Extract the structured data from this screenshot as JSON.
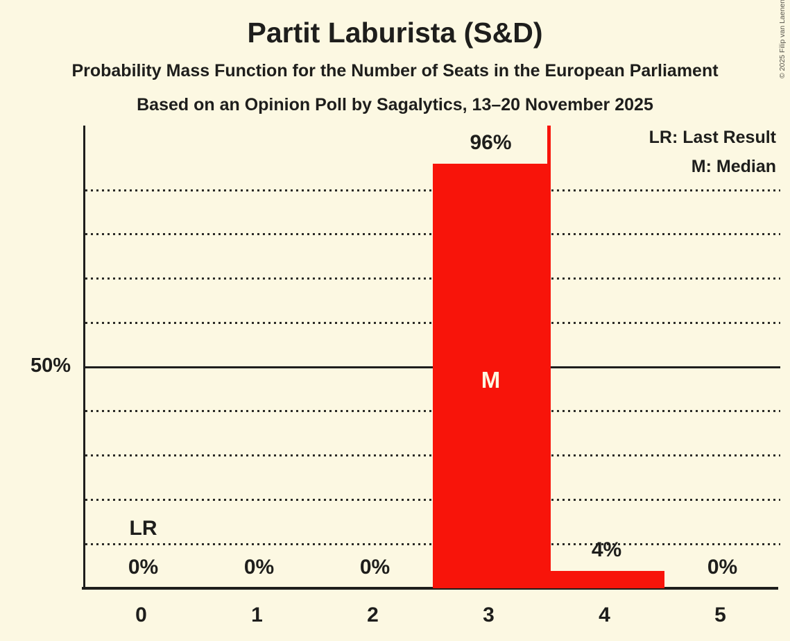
{
  "page": {
    "title": "Partit Laburista (S&D)",
    "subtitle": "Probability Mass Function for the Number of Seats in the European Parliament",
    "poll_line": "Based on an Opinion Poll by Sagalytics, 13–20 November 2025",
    "copyright": "© 2025 Filip van Laenen"
  },
  "legend": {
    "lr": "LR: Last Result",
    "m": "M: Median"
  },
  "chart_data": {
    "type": "bar",
    "title": "Partit Laburista (S&D)",
    "xlabel": "",
    "ylabel": "",
    "categories": [
      "0",
      "1",
      "2",
      "3",
      "4",
      "5"
    ],
    "values": [
      0,
      0,
      0,
      96,
      4,
      0
    ],
    "bar_labels": [
      "0%",
      "0%",
      "0%",
      "96%",
      "4%",
      "0%"
    ],
    "ylim": [
      0,
      104.6
    ],
    "grid": true,
    "dotted_gridlines": [
      10,
      20,
      30,
      40,
      60,
      70,
      80,
      90
    ],
    "solid_gridline": 50,
    "y_axis_label": "50%",
    "y_axis_label_value": 50,
    "median": {
      "seat": 3,
      "label": "M"
    },
    "last_result": {
      "label": "LR",
      "label_seat": 0
    },
    "marker_line": {
      "x": 3.5
    },
    "legend_position": "top-right",
    "colors": {
      "bar": "#F8140A",
      "background": "#FCF8E2",
      "text": "#1E1E1C",
      "grid": "#2B2B27",
      "median_text": "#FCF8E2"
    }
  }
}
